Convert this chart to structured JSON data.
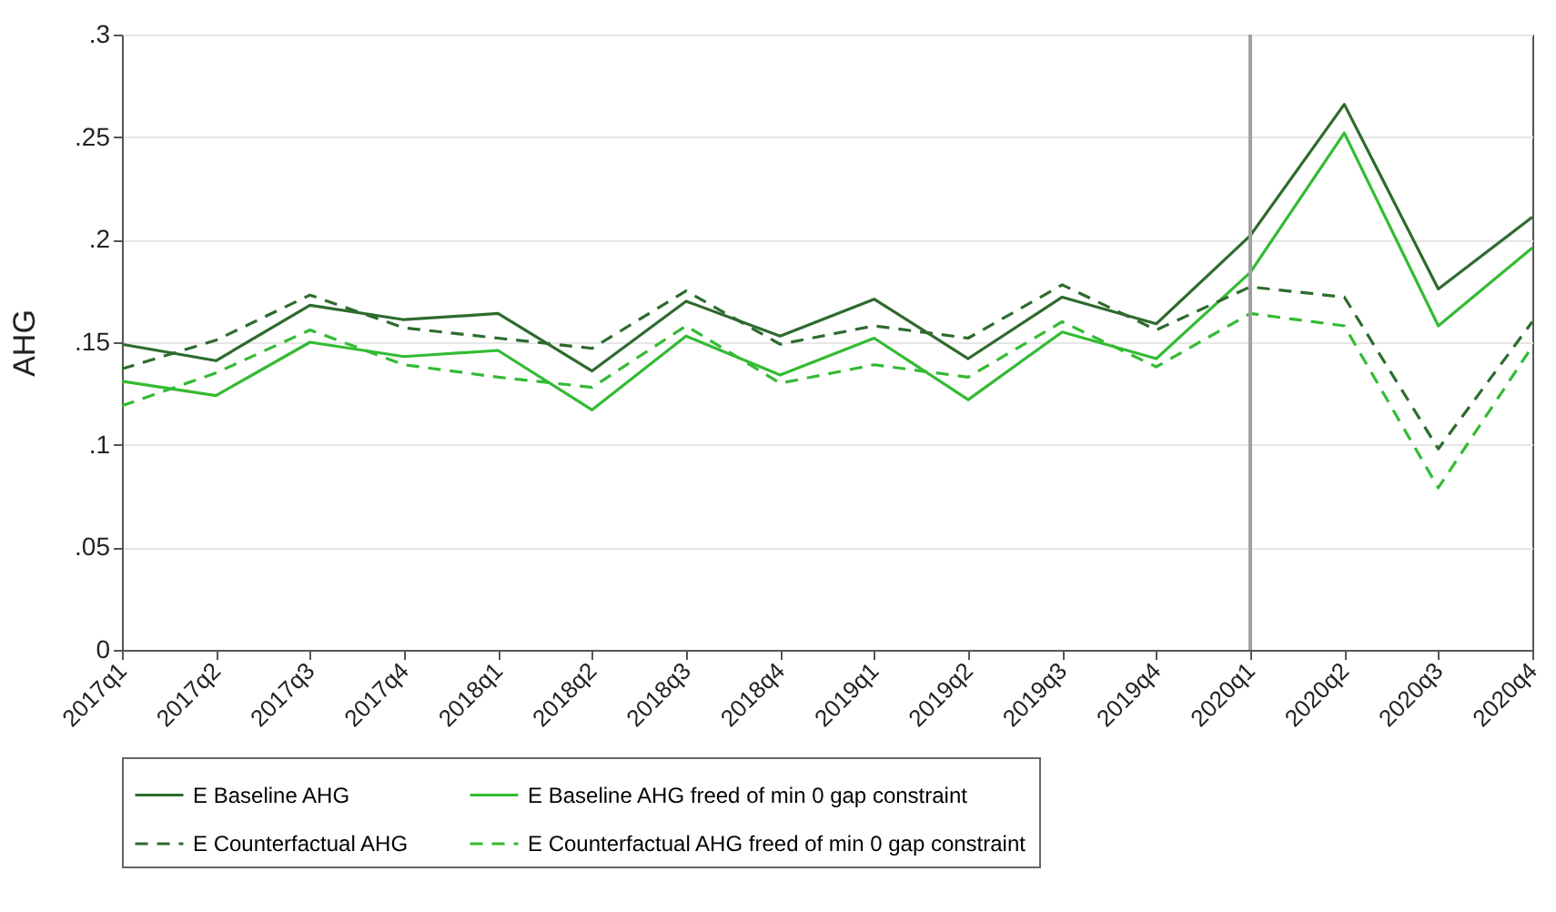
{
  "chart_data": {
    "type": "line",
    "ylabel": "AHG",
    "categories": [
      "2017q1",
      "2017q2",
      "2017q3",
      "2017q4",
      "2018q1",
      "2018q2",
      "2018q3",
      "2018q4",
      "2019q1",
      "2019q2",
      "2019q3",
      "2019q4",
      "2020q1",
      "2020q2",
      "2020q3",
      "2020q4"
    ],
    "series": [
      {
        "name": "E Baseline AHG",
        "color": "#2e6b2e",
        "line_style": "solid",
        "values": [
          0.149,
          0.141,
          0.168,
          0.161,
          0.164,
          0.136,
          0.17,
          0.153,
          0.171,
          0.142,
          0.172,
          0.159,
          0.202,
          0.266,
          0.176,
          0.211
        ]
      },
      {
        "name": "E Baseline AHG freed of min 0 gap constraint",
        "color": "#33bb33",
        "line_style": "solid",
        "values": [
          0.131,
          0.124,
          0.15,
          0.143,
          0.146,
          0.117,
          0.153,
          0.134,
          0.152,
          0.122,
          0.155,
          0.142,
          0.184,
          0.252,
          0.158,
          0.196
        ]
      },
      {
        "name": "E Counterfactual AHG",
        "color": "#2e6b2e",
        "line_style": "dashed",
        "values": [
          0.137,
          0.151,
          0.173,
          0.157,
          0.152,
          0.147,
          0.175,
          0.149,
          0.158,
          0.152,
          0.178,
          0.156,
          0.177,
          0.172,
          0.098,
          0.16
        ]
      },
      {
        "name": "E Counterfactual AHG freed of min 0 gap constraint",
        "color": "#33bb33",
        "line_style": "dashed",
        "values": [
          0.119,
          0.135,
          0.156,
          0.139,
          0.133,
          0.128,
          0.158,
          0.13,
          0.139,
          0.133,
          0.16,
          0.138,
          0.164,
          0.158,
          0.079,
          0.148
        ]
      }
    ],
    "ylim": [
      0,
      0.3
    ],
    "yticks": [
      0,
      {
        "value": 0.05,
        "label": ".05"
      },
      {
        "value": 0.1,
        "label": ".1"
      },
      {
        "value": 0.15,
        "label": ".15"
      },
      {
        "value": 0.2,
        "label": ".2"
      },
      {
        "value": 0.25,
        "label": ".25"
      },
      {
        "value": 0.3,
        "label": ".3"
      }
    ],
    "ref_lines": [
      {
        "axis": "x",
        "value": "2020q1",
        "color": "#a0a0a0"
      }
    ],
    "grid": "y",
    "legend": "bottom"
  }
}
